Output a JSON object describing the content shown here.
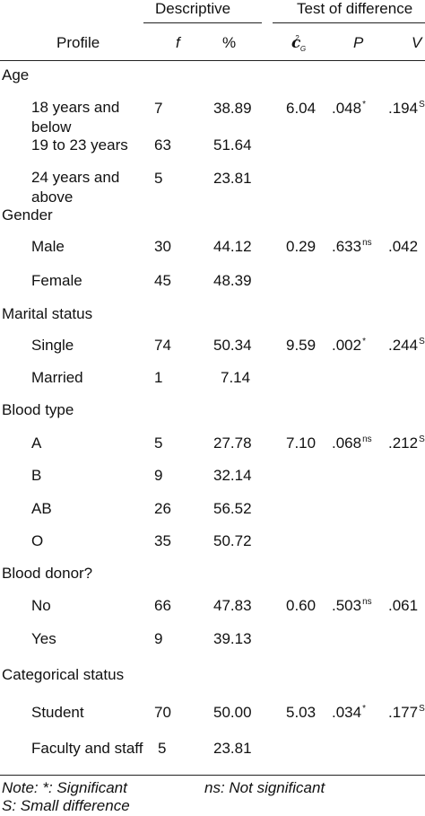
{
  "header": {
    "group_descriptive": "Descriptive",
    "group_test": "Test of difference",
    "col_profile": "Profile",
    "col_f": "f",
    "col_pct": "%",
    "col_chi": "c",
    "col_chi_sup": "2",
    "col_chi_sub": "G",
    "col_p": "P",
    "col_v": "V"
  },
  "sections": [
    {
      "label": "Age"
    },
    {
      "label": "Gender"
    },
    {
      "label": "Marital status"
    },
    {
      "label": "Blood type"
    },
    {
      "label": "Blood donor?"
    },
    {
      "label": "Categorical status"
    }
  ],
  "rows": [
    {
      "label_1": "18 years and",
      "label_2": "below",
      "f": "7",
      "pct": "38.89",
      "chi": "6.04",
      "p": ".048",
      "p_sup": "*",
      "v": ".194",
      "v_sup": "S"
    },
    {
      "label_1": "19 to 23 years",
      "f": "63",
      "pct": "51.64"
    },
    {
      "label_1": "24 years and",
      "label_2": "above",
      "f": "5",
      "pct": "23.81"
    },
    {
      "label_1": "Male",
      "f": "30",
      "pct": "44.12",
      "chi": "0.29",
      "p": ".633",
      "p_sup": "ns",
      "v": ".042"
    },
    {
      "label_1": "Female",
      "f": "45",
      "pct": "48.39"
    },
    {
      "label_1": "Single",
      "f": "74",
      "pct": "50.34",
      "chi": "9.59",
      "p": ".002",
      "p_sup": "*",
      "v": ".244",
      "v_sup": "S"
    },
    {
      "label_1": "Married",
      "f": "1",
      "pct": "7.14"
    },
    {
      "label_1": "A",
      "f": "5",
      "pct": "27.78",
      "chi": "7.10",
      "p": ".068",
      "p_sup": "ns",
      "v": ".212",
      "v_sup": "S"
    },
    {
      "label_1": "B",
      "f": "9",
      "pct": "32.14"
    },
    {
      "label_1": "AB",
      "f": "26",
      "pct": "56.52"
    },
    {
      "label_1": "O",
      "f": "35",
      "pct": "50.72"
    },
    {
      "label_1": "No",
      "f": "66",
      "pct": "47.83",
      "chi": "0.60",
      "p": ".503",
      "p_sup": "ns",
      "v": ".061"
    },
    {
      "label_1": "Yes",
      "f": "9",
      "pct": "39.13"
    },
    {
      "label_1": "Student",
      "f": "70",
      "pct": "50.00",
      "chi": "5.03",
      "p": ".034",
      "p_sup": "*",
      "v": ".177",
      "v_sup": "S"
    },
    {
      "label_1": "Faculty and staff",
      "f": "5",
      "pct": "23.81"
    }
  ],
  "notes": {
    "line1_a": "Note:  *: Significant",
    "line1_b": "ns: Not significant",
    "line2": "S: Small difference"
  }
}
